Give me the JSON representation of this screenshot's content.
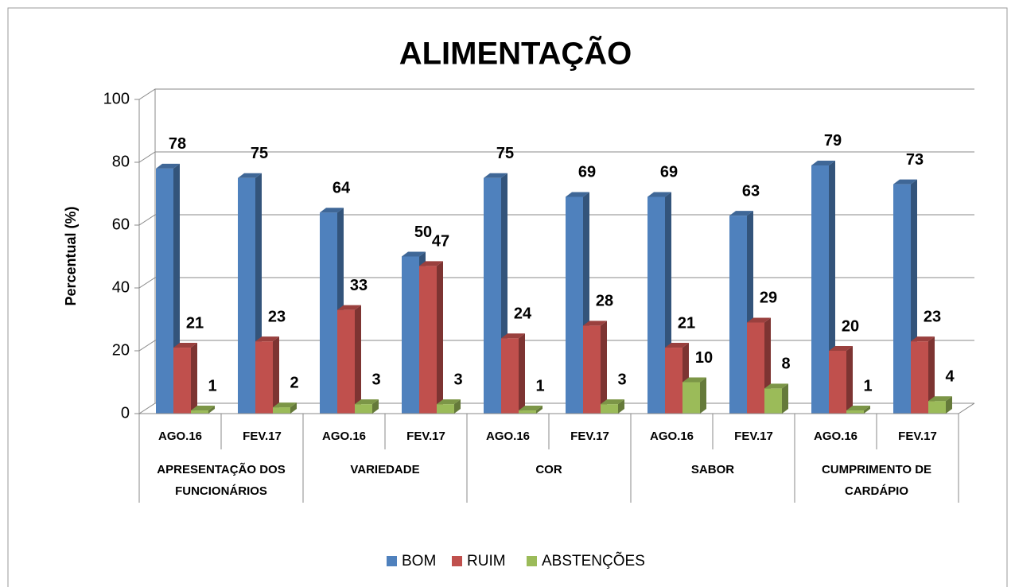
{
  "chart_data": {
    "type": "bar3d",
    "title": "ALIMENTAÇÃO",
    "y_label": "Percentual (%)",
    "categories": [
      "AGO.16",
      "FEV.17",
      "AGO.16",
      "FEV.17",
      "AGO.16",
      "FEV.17",
      "AGO.16",
      "FEV.17",
      "AGO.16",
      "FEV.17"
    ],
    "groups": [
      "APRESENTAÇÃO DOS FUNCIONÁRIOS",
      "VARIEDADE",
      "COR",
      "SABOR",
      "CUMPRIMENTO DE CARDÁPIO"
    ],
    "series": [
      {
        "name": "BOM",
        "color": "#4F81BD",
        "values": [
          78,
          75,
          64,
          50,
          75,
          69,
          69,
          63,
          79,
          73
        ]
      },
      {
        "name": "RUIM",
        "color": "#C0504D",
        "values": [
          21,
          23,
          33,
          47,
          24,
          28,
          21,
          29,
          20,
          23
        ]
      },
      {
        "name": "ABSTENÇÕES",
        "color": "#9BBB59",
        "values": [
          1,
          2,
          3,
          3,
          1,
          3,
          10,
          8,
          1,
          4
        ]
      }
    ],
    "ylim": [
      0,
      100
    ],
    "yticks": [
      0,
      20,
      40,
      60,
      80,
      100
    ],
    "grid": true,
    "legend": "bottom"
  }
}
